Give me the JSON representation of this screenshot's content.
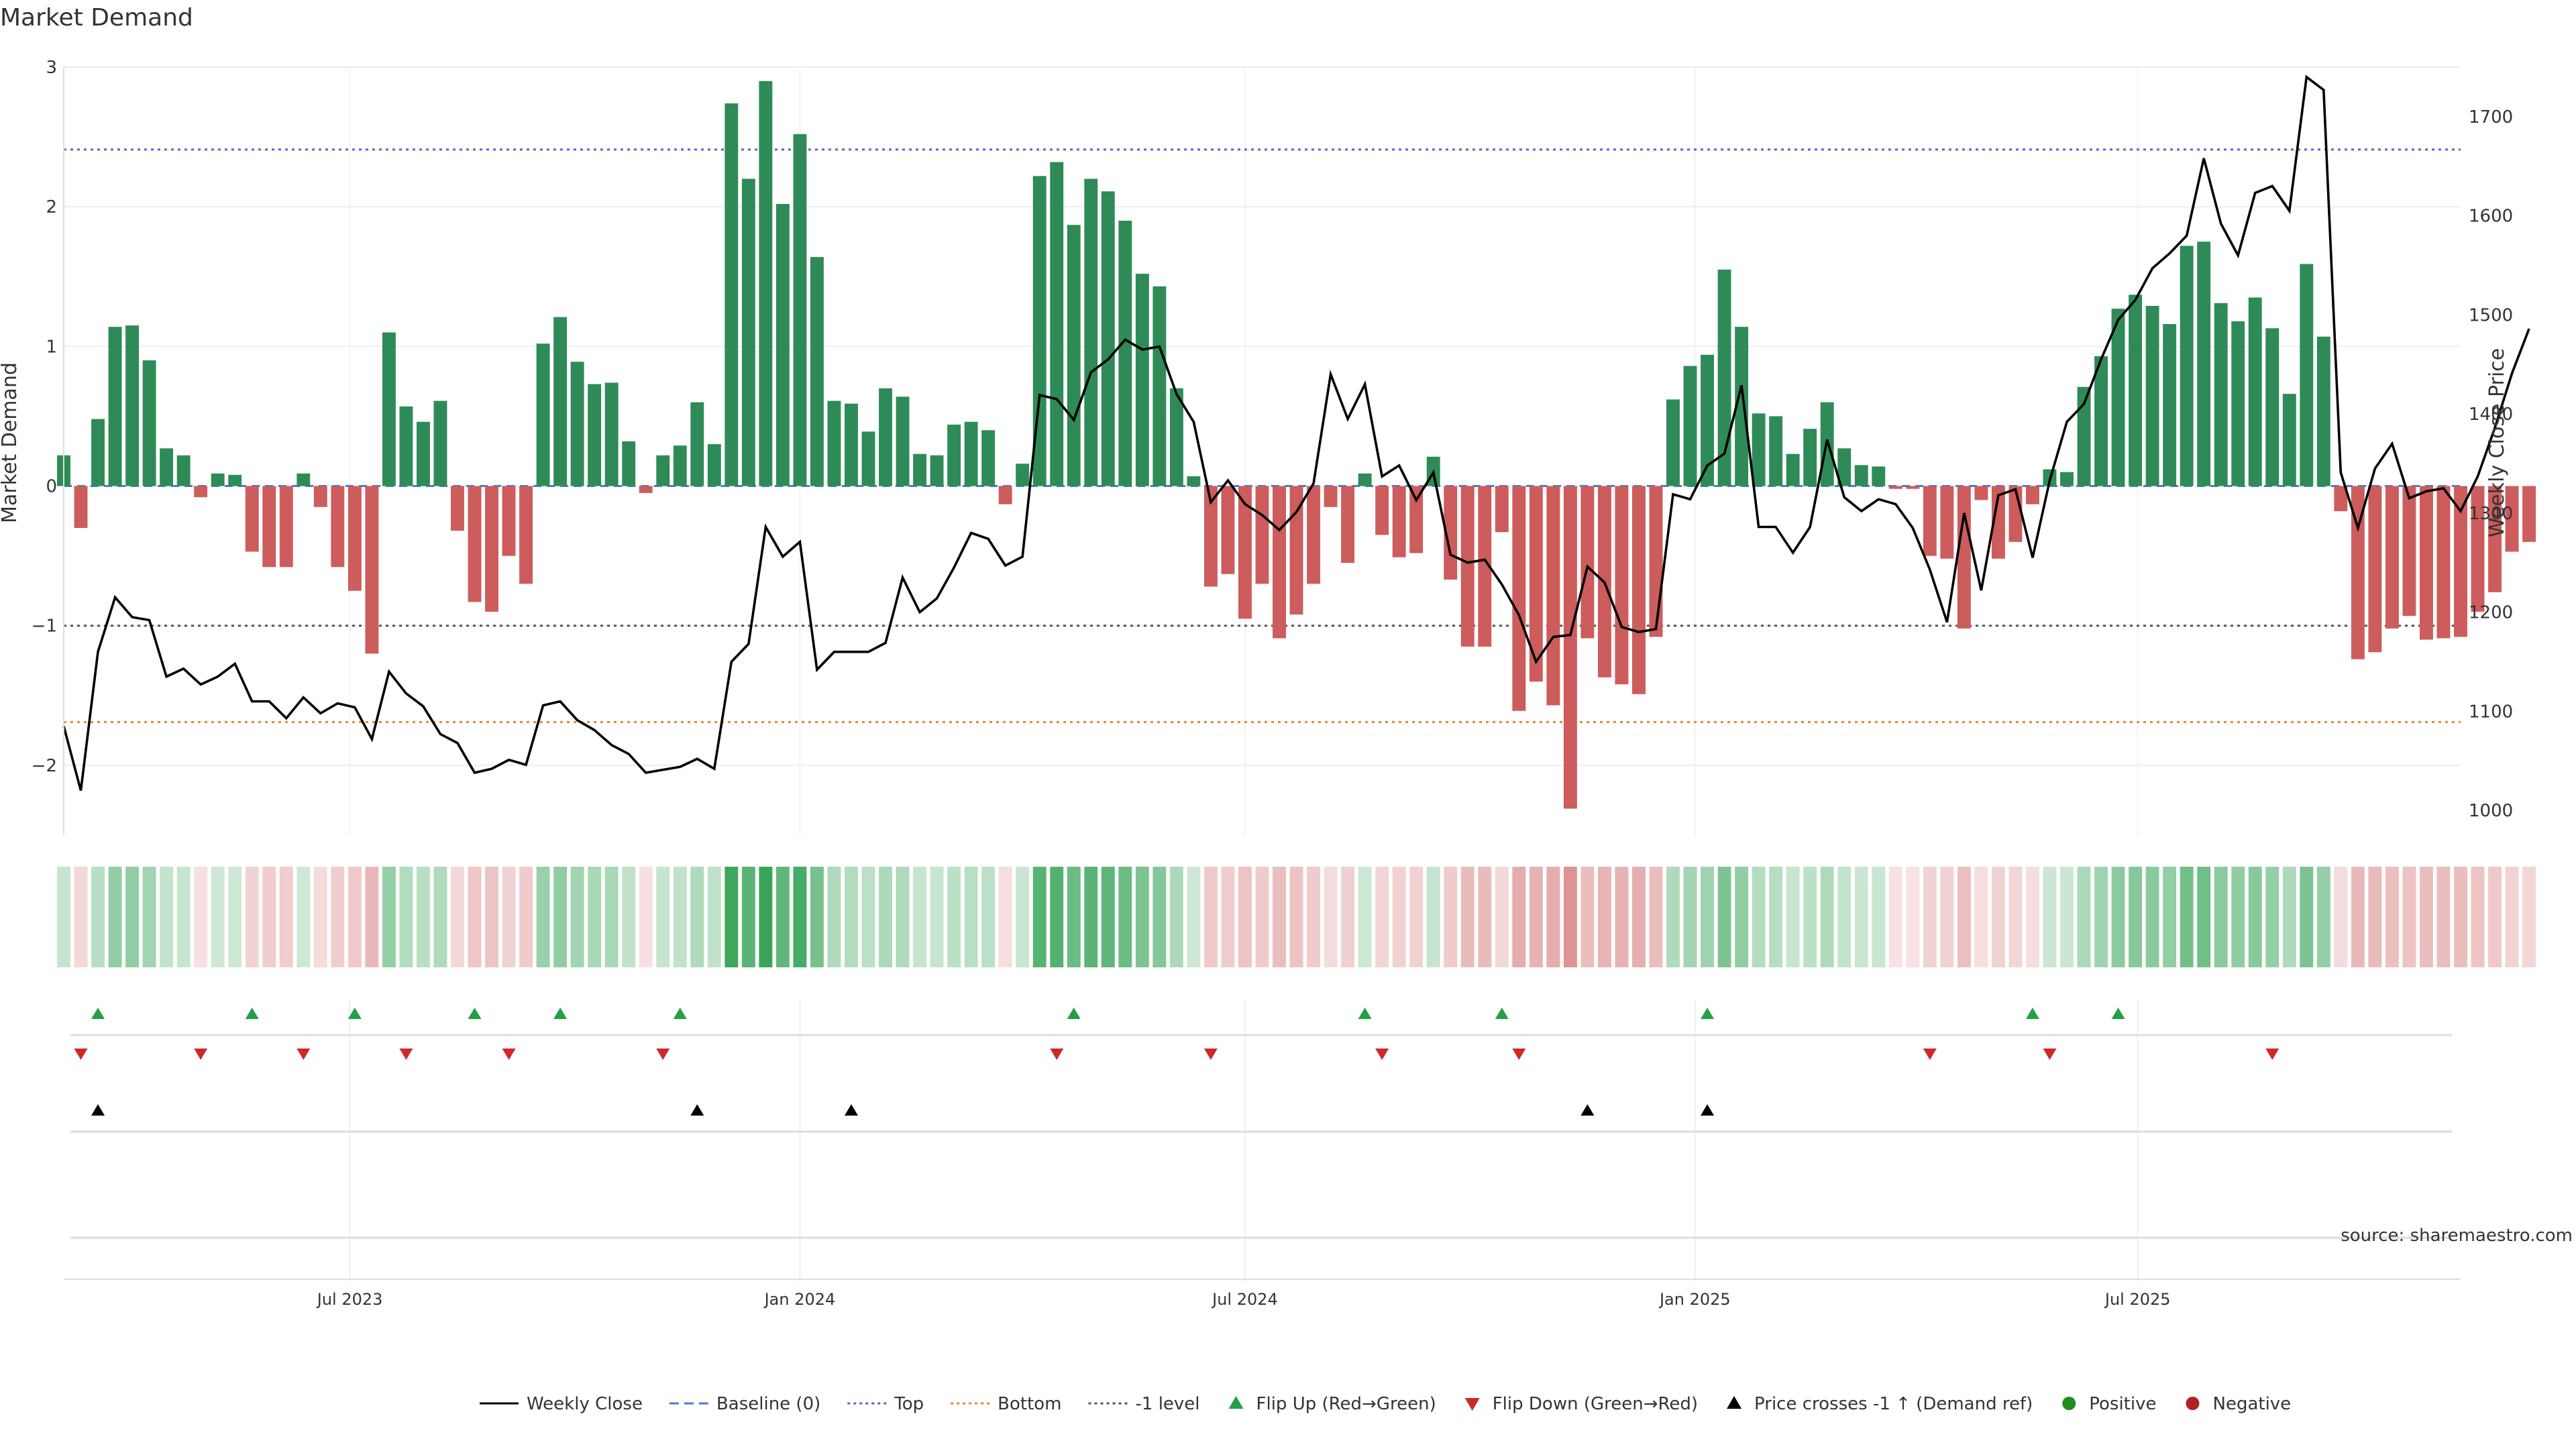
{
  "chart_data": {
    "type": "bar",
    "title": "Market Demand",
    "ylabel": "Market Demand",
    "y2label": "Weekly Close Price",
    "ylim": [
      -2.5,
      3.0
    ],
    "y2lim": [
      975,
      1750
    ],
    "yticks": [
      3,
      2,
      1,
      0,
      -1,
      -2
    ],
    "yticklabels": [
      "3",
      "2",
      "1",
      "0",
      "−1",
      "−2"
    ],
    "y2ticks": [
      1700,
      1600,
      1500,
      1400,
      1300,
      1200,
      1100,
      1000
    ],
    "xlim": [
      "2023-03-06",
      "2025-11-10"
    ],
    "date_ticks": [
      {
        "date": "2023-07-01",
        "label": "Jul 2023"
      },
      {
        "date": "2024-01-01",
        "label": "Jan 2024"
      },
      {
        "date": "2024-07-01",
        "label": "Jul 2024"
      },
      {
        "date": "2025-01-01",
        "label": "Jan 2025"
      },
      {
        "date": "2025-07-01",
        "label": "Jul 2025"
      }
    ],
    "start_date": "2023-03-06",
    "interval_days": 7,
    "reference_lines": {
      "top": 2.41,
      "bottom": -1.69,
      "minus_one": -1.0,
      "baseline": 0
    },
    "series": [
      {
        "name": "Market Demand",
        "values": [
          0.22,
          -0.3,
          0.48,
          1.14,
          1.15,
          0.9,
          0.27,
          0.22,
          -0.08,
          0.09,
          0.08,
          -0.47,
          -0.58,
          -0.58,
          0.09,
          -0.15,
          -0.58,
          -0.75,
          -1.2,
          1.1,
          0.57,
          0.46,
          0.61,
          -0.32,
          -0.83,
          -0.9,
          -0.5,
          -0.7,
          1.02,
          1.21,
          0.89,
          0.73,
          0.74,
          0.32,
          -0.05,
          0.22,
          0.29,
          0.6,
          0.3,
          2.74,
          2.2,
          2.9,
          2.02,
          2.52,
          1.64,
          0.61,
          0.59,
          0.39,
          0.7,
          0.64,
          0.23,
          0.22,
          0.44,
          0.46,
          0.4,
          -0.13,
          0.16,
          2.22,
          2.32,
          1.87,
          2.2,
          2.11,
          1.9,
          1.52,
          1.43,
          0.7,
          0.07,
          -0.72,
          -0.63,
          -0.95,
          -0.7,
          -1.09,
          -0.92,
          -0.7,
          -0.15,
          -0.55,
          0.09,
          -0.35,
          -0.51,
          -0.48,
          0.21,
          -0.67,
          -1.15,
          -1.15,
          -0.33,
          -1.61,
          -1.4,
          -1.57,
          -2.31,
          -1.09,
          -1.37,
          -1.42,
          -1.49,
          -1.08,
          0.62,
          0.86,
          0.94,
          1.55,
          1.14,
          0.52,
          0.5,
          0.23,
          0.41,
          0.6,
          0.27,
          0.15,
          0.14,
          -0.02,
          -0.02,
          -0.5,
          -0.52,
          -1.02,
          -0.1,
          -0.52,
          -0.4,
          -0.13,
          0.12,
          0.1,
          0.71,
          0.93,
          1.27,
          1.37,
          1.29,
          1.16,
          1.72,
          1.75,
          1.31,
          1.18,
          1.35,
          1.13,
          0.66,
          1.59,
          1.07,
          -0.18,
          -1.24,
          -1.19,
          -1.02,
          -0.93,
          -1.1,
          -1.09,
          -1.08,
          -0.9,
          -0.76,
          -0.47,
          -0.4
        ]
      },
      {
        "name": "Weekly Close",
        "values": [
          1085,
          1020,
          1160,
          1215,
          1195,
          1192,
          1135,
          1143,
          1127,
          1135,
          1148,
          1110,
          1110,
          1093,
          1114,
          1098,
          1108,
          1104,
          1072,
          1140,
          1118,
          1105,
          1077,
          1068,
          1038,
          1042,
          1051,
          1046,
          1106,
          1110,
          1091,
          1081,
          1066,
          1057,
          1038,
          1041,
          1044,
          1052,
          1042,
          1150,
          1168,
          1286,
          1256,
          1271,
          1142,
          1160,
          1160,
          1160,
          1169,
          1235,
          1200,
          1214,
          1245,
          1280,
          1274,
          1247,
          1256,
          1419,
          1415,
          1394,
          1442,
          1455,
          1475,
          1465,
          1468,
          1420,
          1392,
          1311,
          1333,
          1309,
          1298,
          1283,
          1301,
          1330,
          1440,
          1395,
          1430,
          1337,
          1348,
          1313,
          1341,
          1258,
          1250,
          1253,
          1228,
          1197,
          1150,
          1175,
          1177,
          1246,
          1230,
          1185,
          1180,
          1183,
          1319,
          1314,
          1348,
          1360,
          1429,
          1286,
          1286,
          1260,
          1286,
          1374,
          1316,
          1302,
          1314,
          1309,
          1285,
          1243,
          1190,
          1300,
          1222,
          1318,
          1324,
          1255,
          1333,
          1392,
          1410,
          1455,
          1495,
          1515,
          1547,
          1562,
          1580,
          1658,
          1592,
          1560,
          1623,
          1630,
          1605,
          1740,
          1727,
          1341,
          1285,
          1345,
          1370,
          1315,
          1322,
          1325,
          1302,
          1337,
          1386,
          1441,
          1486
        ]
      }
    ],
    "flip_up_dates": [
      "2023-03-20",
      "2023-05-22",
      "2023-07-03",
      "2023-08-21",
      "2023-09-25",
      "2023-11-13",
      "2024-04-22",
      "2024-08-19",
      "2024-10-14",
      "2025-01-06",
      "2025-05-19",
      "2025-06-23"
    ],
    "flip_down_dates": [
      "2023-03-13",
      "2023-05-01",
      "2023-06-12",
      "2023-07-24",
      "2023-09-04",
      "2023-11-06",
      "2024-04-15",
      "2024-06-17",
      "2024-08-26",
      "2024-10-21",
      "2025-04-07",
      "2025-05-26",
      "2025-08-25"
    ],
    "cross_up_dates": [
      "2023-03-20",
      "2023-11-20",
      "2024-01-22",
      "2024-11-18",
      "2025-01-06"
    ],
    "legend": [
      {
        "label": "Weekly Close",
        "kind": "line",
        "color": "#000000"
      },
      {
        "label": "Baseline (0)",
        "kind": "dash",
        "color": "#4a7bd0"
      },
      {
        "label": "Top",
        "kind": "dot",
        "color": "#6a5acd"
      },
      {
        "label": "Bottom",
        "kind": "dot",
        "color": "#e08a2a"
      },
      {
        "label": "-1 level",
        "kind": "dot",
        "color": "#555555"
      },
      {
        "label": "Flip Up (Red→Green)",
        "kind": "tri-up",
        "color": "#22a045"
      },
      {
        "label": "Flip Down (Green→Red)",
        "kind": "tri-down",
        "color": "#d02828"
      },
      {
        "label": "Price crosses -1 ↑ (Demand ref)",
        "kind": "tri-up",
        "color": "#000000"
      },
      {
        "label": "Positive",
        "kind": "dot-marker",
        "color": "#228b22"
      },
      {
        "label": "Negative",
        "kind": "dot-marker",
        "color": "#b22222"
      }
    ],
    "source": "source: sharemaestro.com",
    "colors": {
      "positive_bar": "#2e8b57",
      "negative_bar": "#cd5c5c",
      "flip_up": "#22a045",
      "flip_down": "#d02828",
      "price": "#000000"
    }
  }
}
